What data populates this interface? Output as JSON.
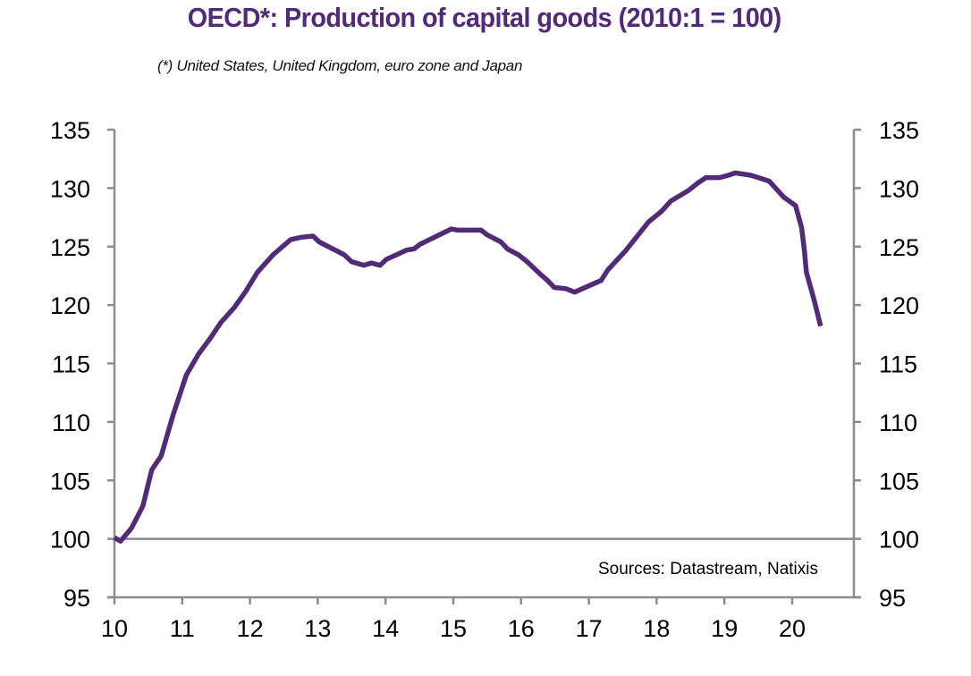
{
  "chart_data": {
    "type": "line",
    "title": "OECD*:  Production of capital goods (2010:1 = 100)",
    "subtitle": "(*) United States, United Kingdom, euro zone and Japan",
    "xlabel": "",
    "ylabel": "",
    "xlim": [
      10,
      20.92
    ],
    "ylim": [
      95,
      135
    ],
    "x_ticks": [
      10,
      11,
      12,
      13,
      14,
      15,
      16,
      17,
      18,
      19,
      20
    ],
    "x_tick_labels": [
      "10",
      "11",
      "12",
      "13",
      "14",
      "15",
      "16",
      "17",
      "18",
      "19",
      "20"
    ],
    "y_ticks": [
      95,
      100,
      105,
      110,
      115,
      120,
      125,
      130,
      135
    ],
    "y_tick_labels_left": [
      "95",
      "100",
      "105",
      "110",
      "115",
      "120",
      "125",
      "130",
      "135"
    ],
    "y_tick_labels_right": [
      "95",
      "100",
      "105",
      "110",
      "115",
      "120",
      "125",
      "130",
      "135"
    ],
    "reference_line": 100,
    "grid": false,
    "annotation": "Sources:  Datastream,  Natixis",
    "series": [
      {
        "name": "OECD production of capital goods",
        "color": "#512a78",
        "x": [
          10.0,
          10.09,
          10.25,
          10.42,
          10.55,
          10.69,
          10.86,
          11.06,
          11.24,
          11.42,
          11.57,
          11.77,
          11.94,
          12.11,
          12.34,
          12.6,
          12.76,
          12.93,
          13.02,
          13.39,
          13.5,
          13.68,
          13.79,
          13.92,
          14.01,
          14.31,
          14.42,
          14.51,
          14.97,
          15.07,
          15.41,
          15.5,
          15.7,
          15.8,
          15.96,
          16.09,
          16.29,
          16.39,
          16.49,
          16.66,
          16.79,
          17.18,
          17.28,
          17.55,
          17.7,
          17.88,
          18.07,
          18.21,
          18.47,
          18.6,
          18.73,
          18.93,
          19.06,
          19.16,
          19.39,
          19.66,
          19.88,
          20.05,
          20.14,
          20.18,
          20.21,
          20.32,
          20.42
        ],
        "values": [
          100.1,
          99.8,
          100.9,
          102.8,
          105.9,
          107.1,
          110.5,
          114.0,
          115.8,
          117.2,
          118.5,
          119.8,
          121.2,
          122.8,
          124.3,
          125.6,
          125.8,
          125.9,
          125.4,
          124.3,
          123.7,
          123.4,
          123.6,
          123.4,
          123.9,
          124.7,
          124.8,
          125.2,
          126.5,
          126.4,
          126.4,
          126.0,
          125.4,
          124.8,
          124.3,
          123.7,
          122.6,
          122.1,
          121.5,
          121.4,
          121.1,
          122.1,
          123.0,
          124.7,
          125.8,
          127.1,
          128.0,
          128.9,
          129.8,
          130.4,
          130.9,
          130.9,
          131.1,
          131.3,
          131.1,
          130.6,
          129.2,
          128.5,
          126.6,
          124.7,
          122.8,
          120.5,
          118.2
        ]
      }
    ]
  }
}
